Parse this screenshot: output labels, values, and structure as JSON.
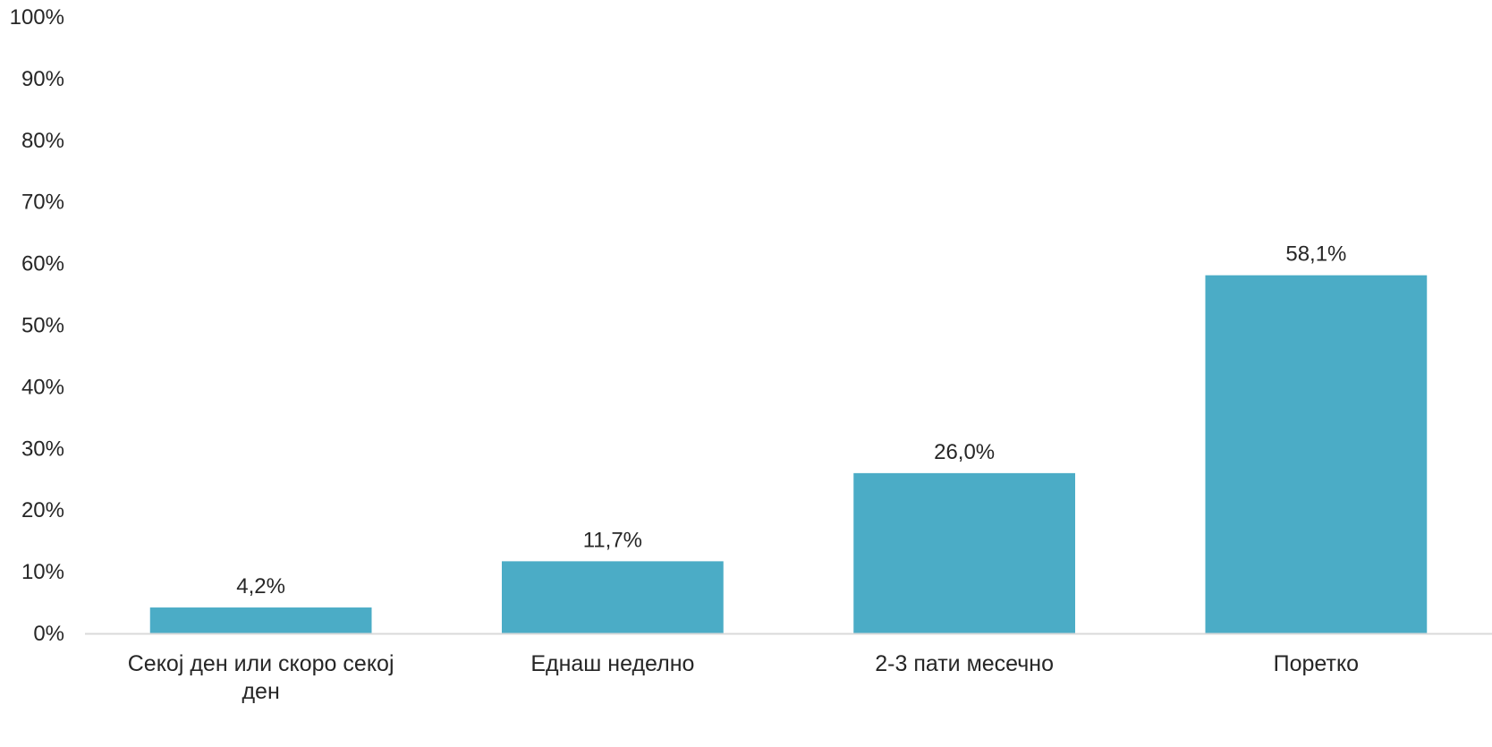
{
  "chart_data": {
    "type": "bar",
    "categories": [
      [
        "Секој ден или скоро секој",
        "ден"
      ],
      [
        "Еднаш неделно"
      ],
      [
        "2-3 пати месечно"
      ],
      [
        "Поретко"
      ]
    ],
    "values": [
      4.2,
      11.7,
      26.0,
      58.1
    ],
    "data_labels": [
      "4,2%",
      "11,7%",
      "26,0%",
      "58,1%"
    ],
    "y_ticks": [
      0,
      10,
      20,
      30,
      40,
      50,
      60,
      70,
      80,
      90,
      100
    ],
    "y_tick_labels": [
      "0%",
      "10%",
      "20%",
      "30%",
      "40%",
      "50%",
      "60%",
      "70%",
      "80%",
      "90%",
      "100%"
    ],
    "ylim": [
      0,
      100
    ],
    "grid": false,
    "legend": "none",
    "colors": {
      "bar": "#4bacc6",
      "axis": "#d9d9d9",
      "text": "#262626"
    }
  }
}
